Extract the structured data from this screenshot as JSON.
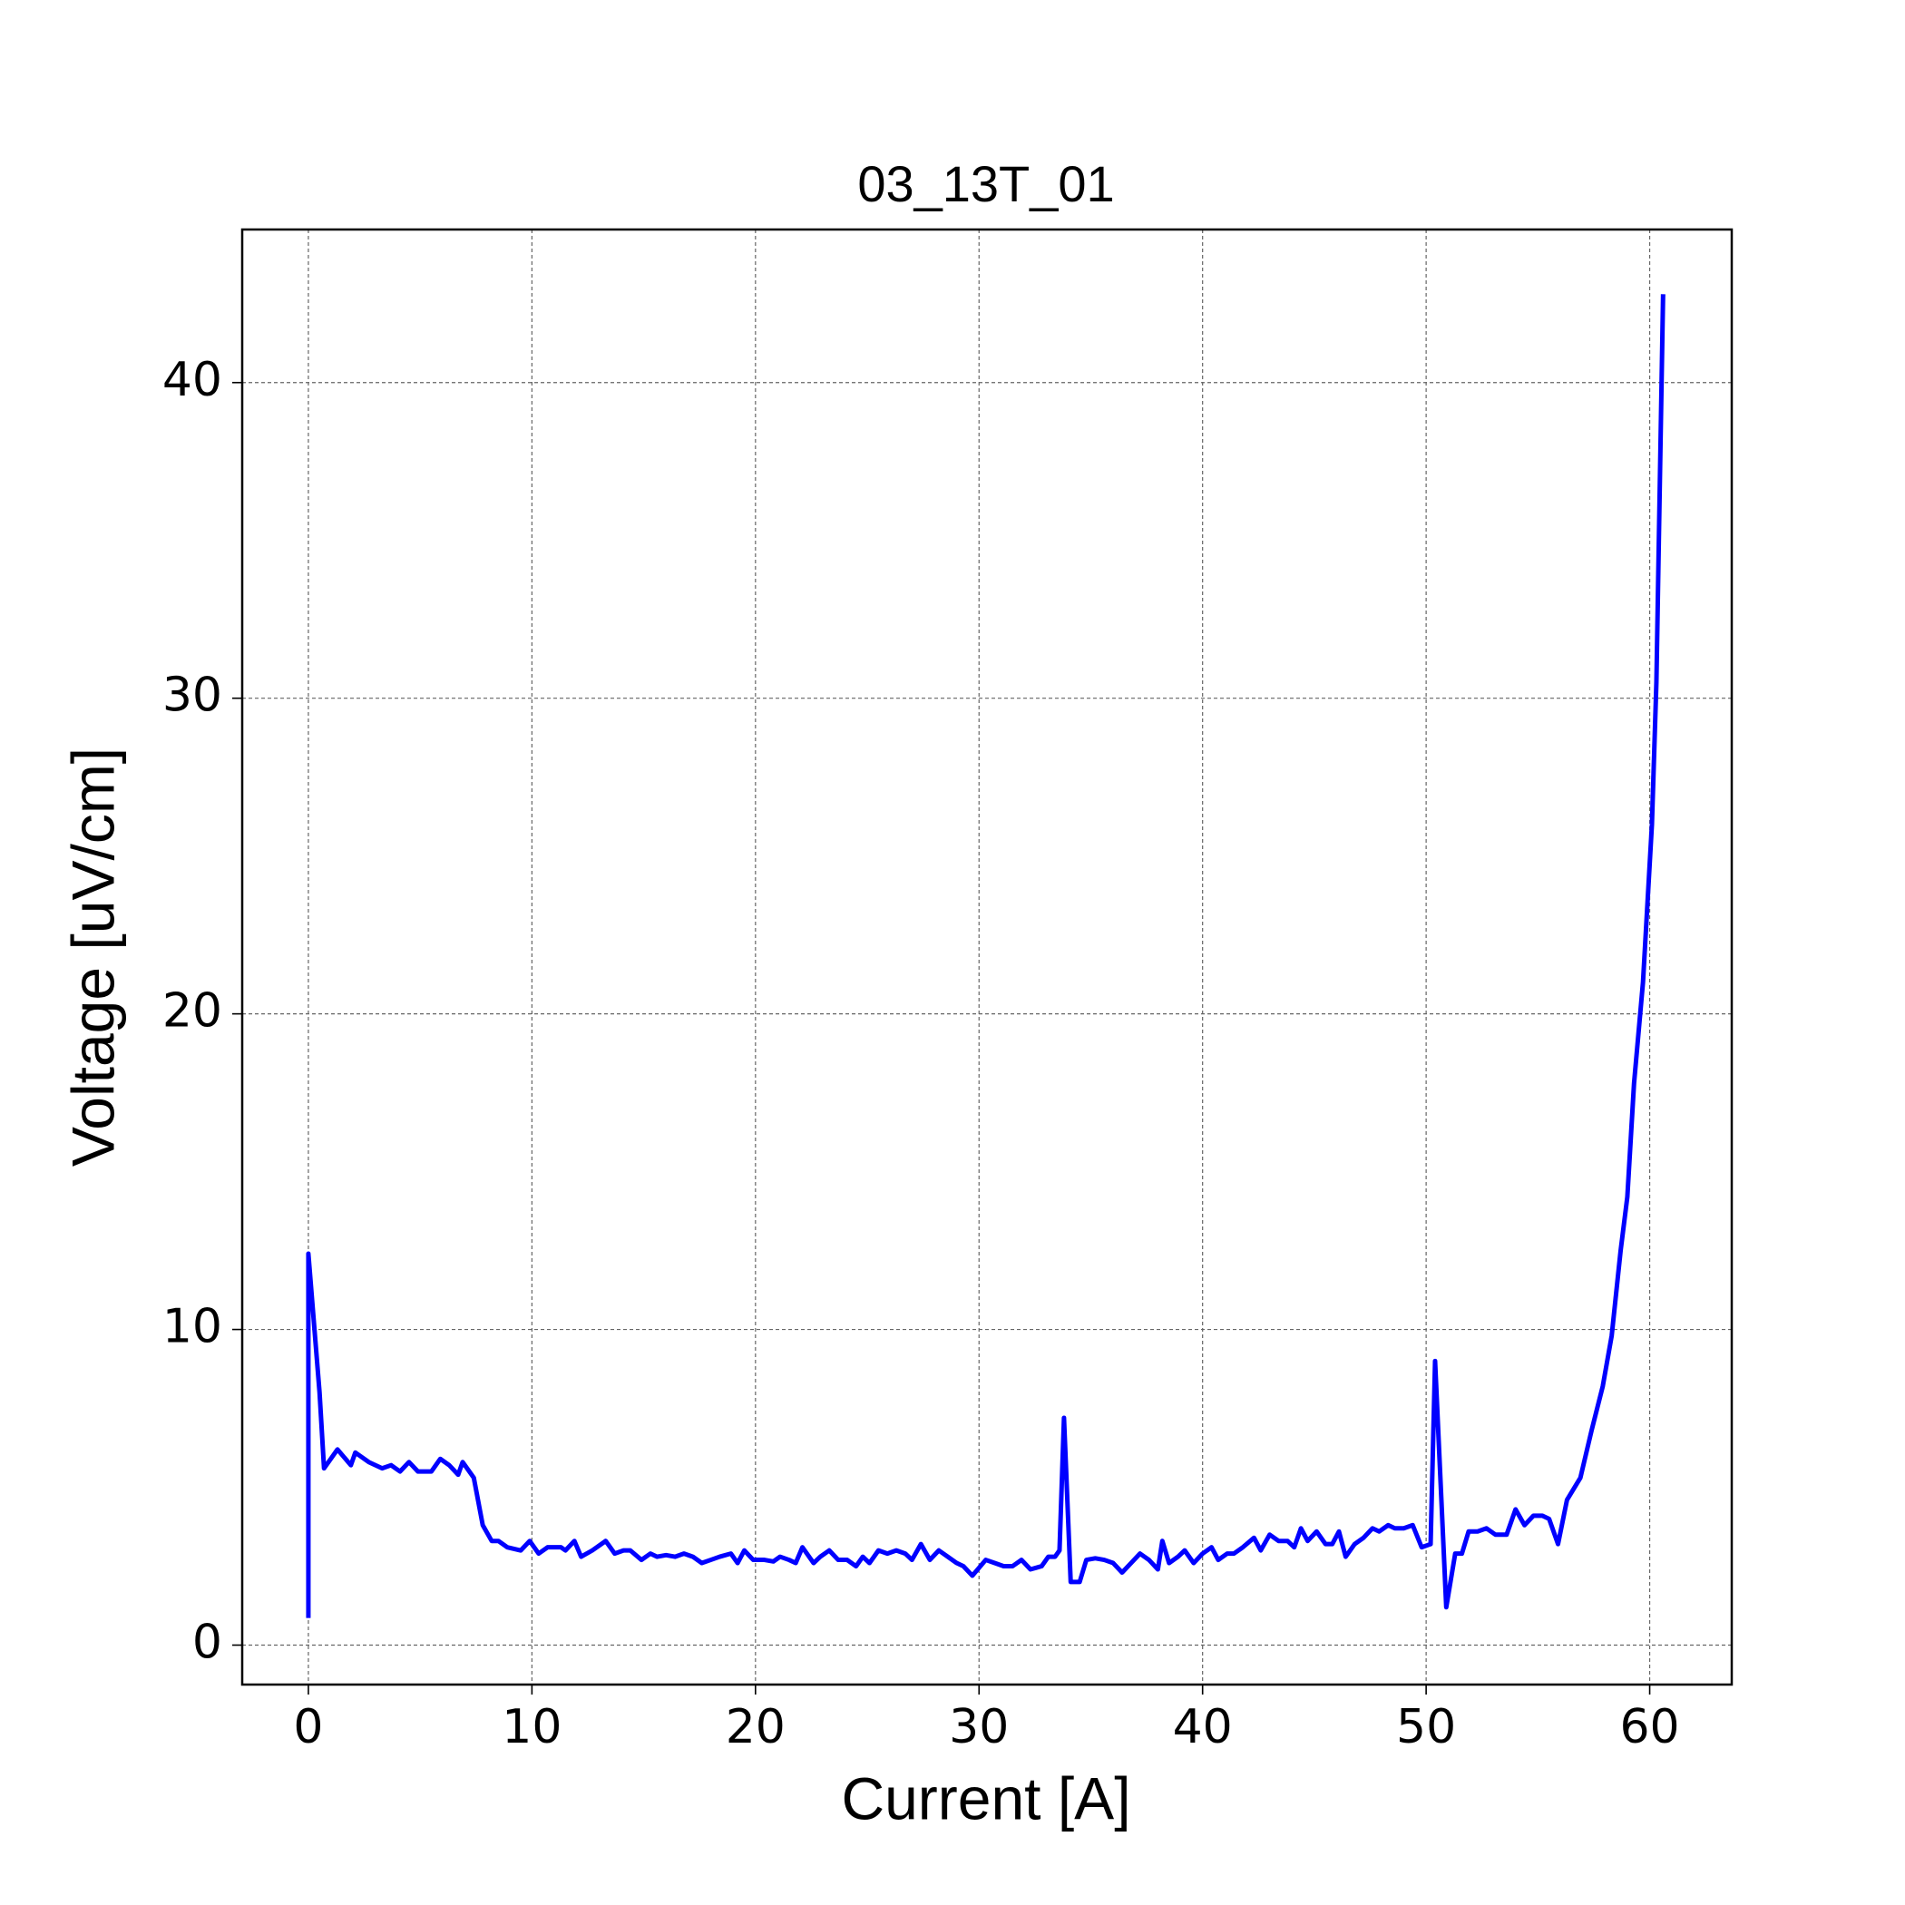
{
  "chart_data": {
    "type": "line",
    "title": "03_13T_01",
    "x_label": "Current [A]",
    "y_label": "Voltage [uV/cm]",
    "xlim": [
      -2.96,
      63.67
    ],
    "ylim": [
      -1.25,
      44.85
    ],
    "xticks": [
      0,
      10,
      20,
      30,
      40,
      50,
      60
    ],
    "yticks": [
      0,
      10,
      20,
      30,
      40
    ],
    "grid": true,
    "x": [
      0,
      0,
      0.5,
      0.7,
      1.3,
      1.9,
      2.1,
      2.7,
      3.3,
      3.7,
      4.1,
      4.5,
      4.9,
      5.5,
      5.9,
      6.3,
      6.7,
      6.9,
      7.4,
      7.8,
      8.2,
      8.5,
      8.9,
      9.5,
      9.9,
      10.3,
      10.7,
      11.3,
      11.5,
      11.9,
      12.2,
      12.7,
      13.1,
      13.3,
      13.7,
      14.1,
      14.4,
      14.9,
      15.3,
      15.6,
      16.0,
      16.4,
      16.8,
      17.2,
      17.6,
      18.0,
      18.4,
      18.9,
      19.2,
      19.5,
      19.9,
      20.4,
      20.8,
      21.1,
      21.5,
      21.8,
      22.1,
      22.6,
      22.9,
      23.3,
      23.7,
      24.1,
      24.5,
      24.8,
      25.1,
      25.5,
      25.9,
      26.3,
      26.7,
      27.0,
      27.4,
      27.8,
      28.2,
      28.6,
      29.0,
      29.3,
      29.7,
      30.3,
      30.7,
      31.1,
      31.5,
      31.9,
      32.3,
      32.8,
      33.1,
      33.4,
      33.6,
      33.8,
      34.1,
      34.5,
      34.8,
      35.2,
      35.6,
      36.0,
      36.4,
      36.8,
      37.2,
      37.6,
      38.0,
      38.2,
      38.5,
      38.9,
      39.2,
      39.6,
      40.0,
      40.4,
      40.7,
      41.1,
      41.4,
      41.8,
      42.3,
      42.6,
      43.0,
      43.4,
      43.8,
      44.1,
      44.4,
      44.7,
      45.1,
      45.5,
      45.8,
      46.1,
      46.4,
      46.8,
      47.2,
      47.6,
      47.9,
      48.3,
      48.6,
      49.0,
      49.4,
      49.8,
      50.2,
      50.4,
      50.9,
      51.3,
      51.6,
      51.9,
      52.3,
      52.7,
      53.1,
      53.6,
      54.0,
      54.4,
      54.8,
      55.2,
      55.5,
      55.9,
      56.3,
      56.9,
      57.4,
      57.9,
      58.3,
      58.7,
      59.0,
      59.3,
      59.7,
      60.1,
      60.3,
      60.6
    ],
    "series": [
      {
        "color": "#0000ff",
        "values": [
          0.86,
          12.4,
          8.0,
          5.6,
          6.2,
          5.7,
          6.1,
          5.8,
          5.6,
          5.7,
          5.5,
          5.8,
          5.5,
          5.5,
          5.9,
          5.7,
          5.4,
          5.8,
          5.3,
          3.8,
          3.3,
          3.3,
          3.1,
          3.0,
          3.3,
          2.9,
          3.1,
          3.1,
          3.0,
          3.3,
          2.8,
          3.0,
          3.2,
          3.3,
          2.9,
          3.0,
          3.0,
          2.7,
          2.9,
          2.8,
          2.85,
          2.8,
          2.9,
          2.8,
          2.6,
          2.7,
          2.8,
          2.9,
          2.6,
          3.0,
          2.7,
          2.7,
          2.65,
          2.8,
          2.7,
          2.6,
          3.1,
          2.6,
          2.8,
          3.0,
          2.7,
          2.7,
          2.5,
          2.8,
          2.6,
          3.0,
          2.9,
          3.0,
          2.9,
          2.7,
          3.2,
          2.7,
          3.0,
          2.8,
          2.6,
          2.5,
          2.2,
          2.7,
          2.6,
          2.5,
          2.5,
          2.7,
          2.4,
          2.5,
          2.8,
          2.8,
          3.0,
          7.2,
          2.0,
          2.0,
          2.7,
          2.75,
          2.7,
          2.6,
          2.3,
          2.6,
          2.9,
          2.7,
          2.4,
          3.3,
          2.6,
          2.8,
          3.0,
          2.6,
          2.9,
          3.1,
          2.7,
          2.9,
          2.9,
          3.1,
          3.4,
          3.0,
          3.5,
          3.3,
          3.3,
          3.1,
          3.7,
          3.3,
          3.6,
          3.2,
          3.2,
          3.6,
          2.8,
          3.2,
          3.4,
          3.7,
          3.6,
          3.8,
          3.7,
          3.7,
          3.8,
          3.1,
          3.2,
          9.0,
          1.2,
          2.9,
          2.9,
          3.6,
          3.6,
          3.7,
          3.5,
          3.5,
          4.3,
          3.8,
          4.1,
          4.1,
          4.0,
          3.2,
          4.6,
          5.3,
          6.8,
          8.2,
          9.8,
          12.5,
          14.2,
          17.8,
          21.0,
          26.0,
          30.5,
          42.8
        ]
      }
    ]
  }
}
